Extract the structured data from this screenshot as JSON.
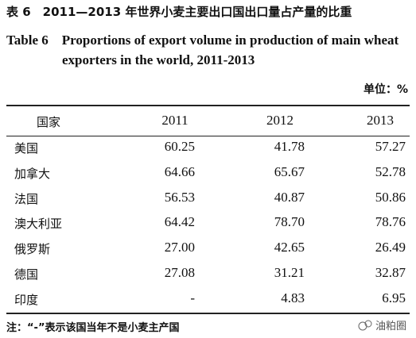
{
  "header": {
    "title_cn": "表 6　2011—2013 年世界小麦主要出口国出口量占产量的比重",
    "title_en_line1": "Table 6　Proportions of export volume in production of main wheat",
    "title_en_line2": "exporters in the world, 2011-2013",
    "unit": "单位：%"
  },
  "table": {
    "columns": [
      "国家",
      "2011",
      "2012",
      "2013"
    ],
    "rows": [
      [
        "美国",
        "60.25",
        "41.78",
        "57.27"
      ],
      [
        "加拿大",
        "64.66",
        "65.67",
        "52.78"
      ],
      [
        "法国",
        "56.53",
        "40.87",
        "50.86"
      ],
      [
        "澳大利亚",
        "64.42",
        "78.70",
        "78.76"
      ],
      [
        "俄罗斯",
        "27.00",
        "42.65",
        "26.49"
      ],
      [
        "德国",
        "27.08",
        "31.21",
        "32.87"
      ],
      [
        "印度",
        "-",
        "4.83",
        "6.95"
      ]
    ]
  },
  "footer": {
    "note": "注：“-”表示该国当年不是小麦主产国",
    "watermark": "油粕圈"
  }
}
